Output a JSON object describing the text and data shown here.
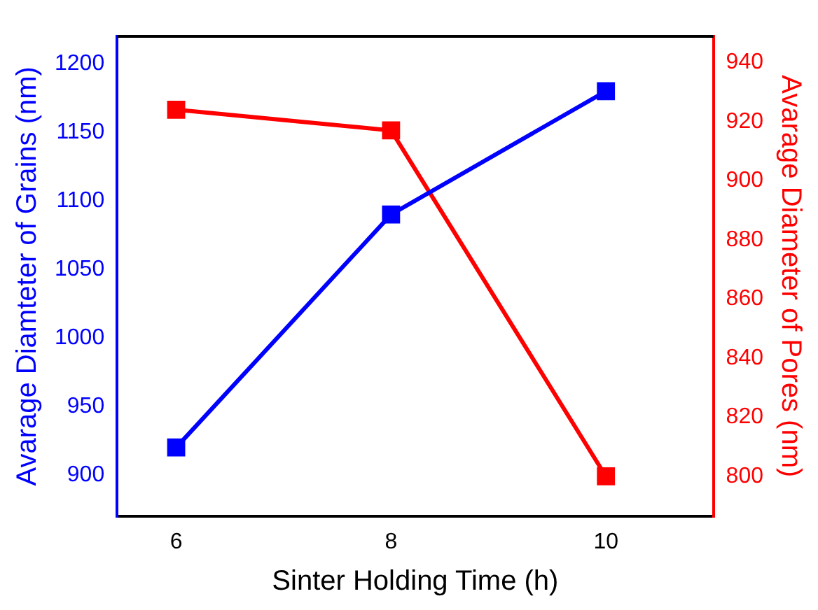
{
  "chart_data": {
    "type": "line",
    "xlabel": "Sinter Holding Time (h)",
    "ylabel": "Avarage Diamteter of Grains (nm)",
    "y2label": "Avarage Diameter of Pores (nm)",
    "x": [
      6,
      8,
      10
    ],
    "series": [
      {
        "color": "#0000ff",
        "values": [
          920,
          1090,
          1180
        ]
      },
      {
        "color": "#ff0000",
        "values": [
          924,
          917,
          800
        ],
        "axis": "y2"
      }
    ],
    "xlim": [
      5.45,
      11.0
    ],
    "xticks": [
      6,
      8,
      10
    ],
    "ylim": [
      870,
      1220
    ],
    "yticks": [
      900,
      950,
      1000,
      1050,
      1100,
      1150,
      1200
    ],
    "y2lim": [
      786.6,
      948.8
    ],
    "y2ticks": [
      800,
      820,
      840,
      860,
      880,
      900,
      920,
      940
    ],
    "marker": "square",
    "line_style": "solid",
    "grid": false,
    "legend": false
  }
}
